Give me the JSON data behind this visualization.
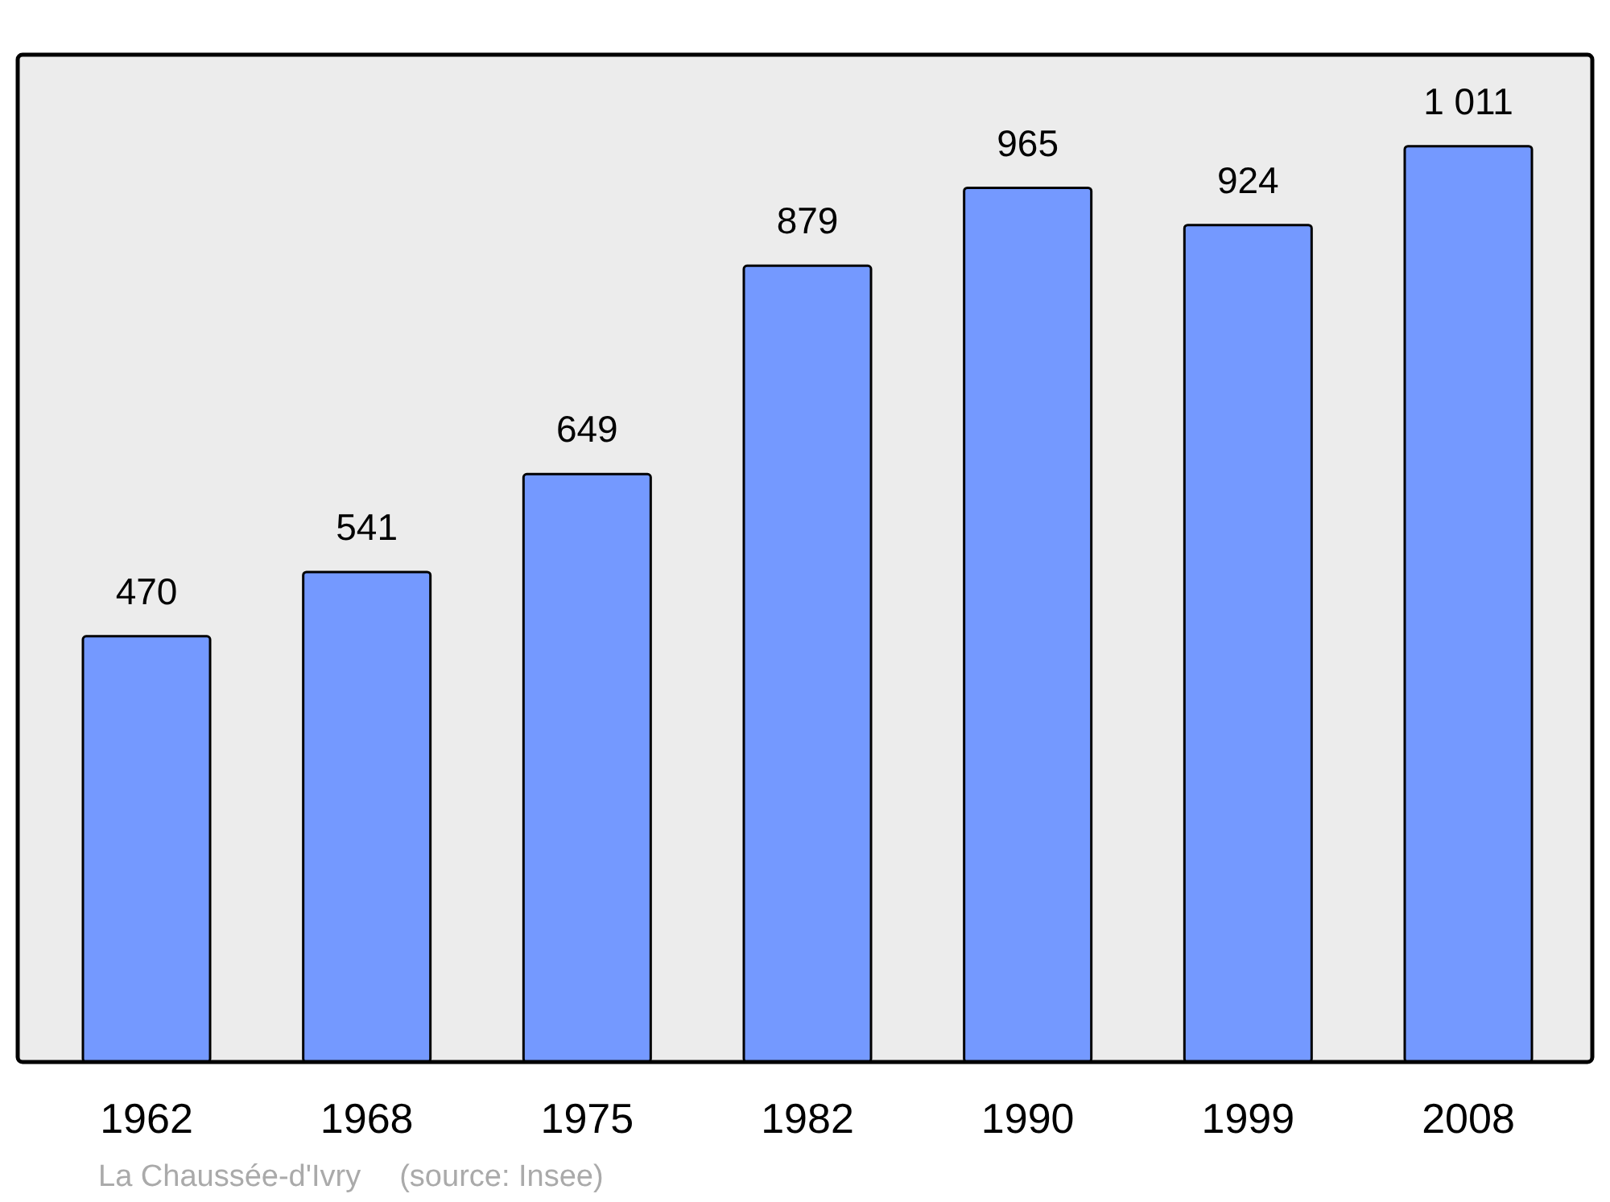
{
  "chart_data": {
    "type": "bar",
    "categories": [
      "1962",
      "1968",
      "1975",
      "1982",
      "1990",
      "1999",
      "2008"
    ],
    "values": [
      470,
      541,
      649,
      879,
      965,
      924,
      1011
    ],
    "value_labels": [
      "470",
      "541",
      "649",
      "879",
      "965",
      "924",
      "1 011"
    ],
    "color": "#7499ff",
    "ylim": [
      0,
      1112
    ],
    "annotations": [
      "La Chaussée-d'Ivry",
      "(source: Insee)"
    ]
  }
}
